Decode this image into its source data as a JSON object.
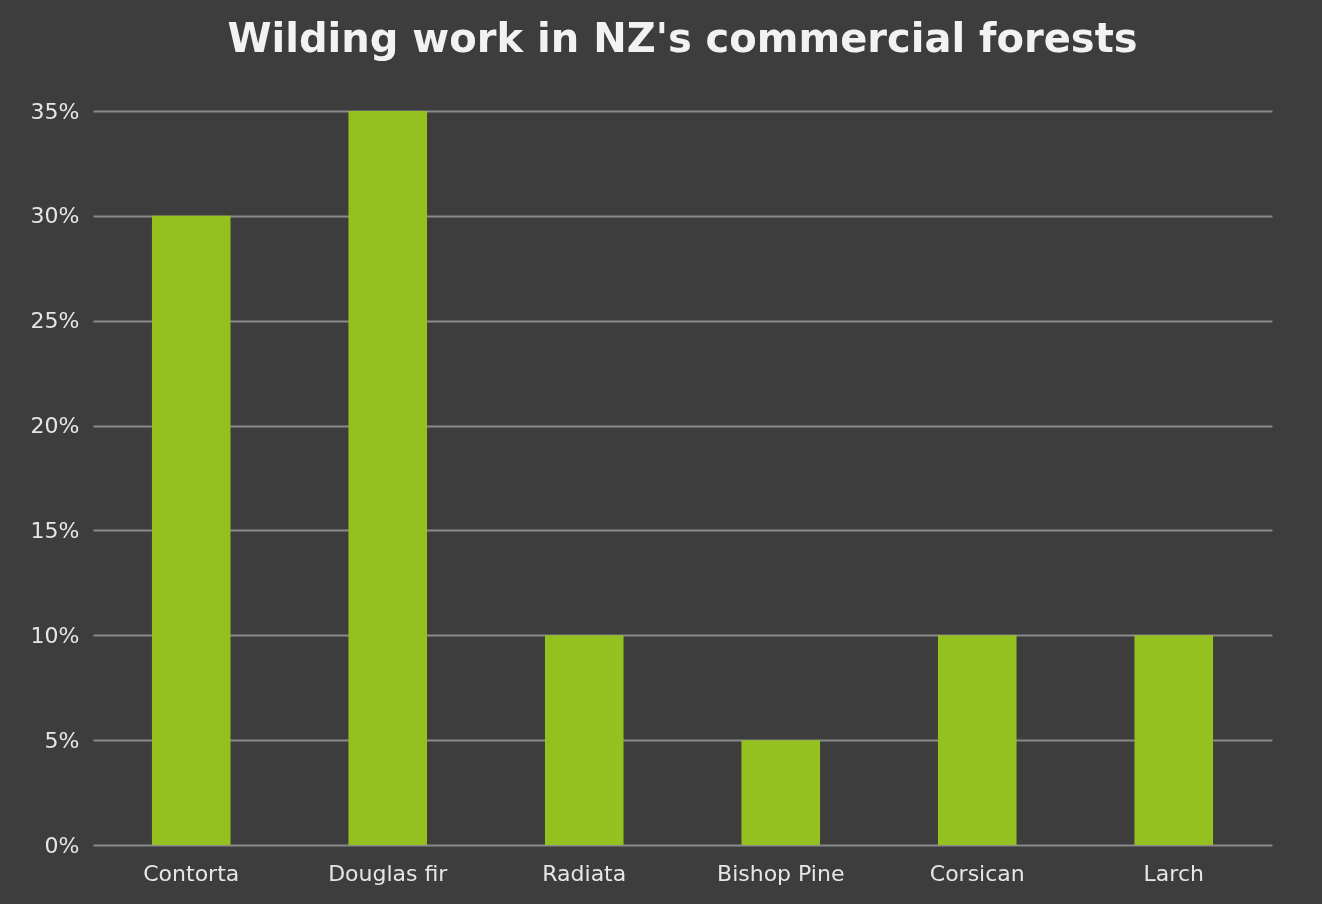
{
  "chart_data": {
    "type": "bar",
    "title": "Wilding work in NZ's commercial forests",
    "categories": [
      "Contorta",
      "Douglas fir",
      "Radiata",
      "Bishop Pine",
      "Corsican",
      "Larch"
    ],
    "values": [
      30,
      35,
      10,
      5,
      10,
      10
    ],
    "color": "#94c11f",
    "ylim": [
      0,
      35
    ],
    "yticks": [
      {
        "value": 0,
        "label": "0%"
      },
      {
        "value": 5,
        "label": "5%"
      },
      {
        "value": 10,
        "label": "10%"
      },
      {
        "value": 15,
        "label": "15%"
      },
      {
        "value": 20,
        "label": "20%"
      },
      {
        "value": 25,
        "label": "25%"
      },
      {
        "value": 30,
        "label": "30%"
      },
      {
        "value": 35,
        "label": "35%"
      }
    ],
    "grid": "y"
  }
}
